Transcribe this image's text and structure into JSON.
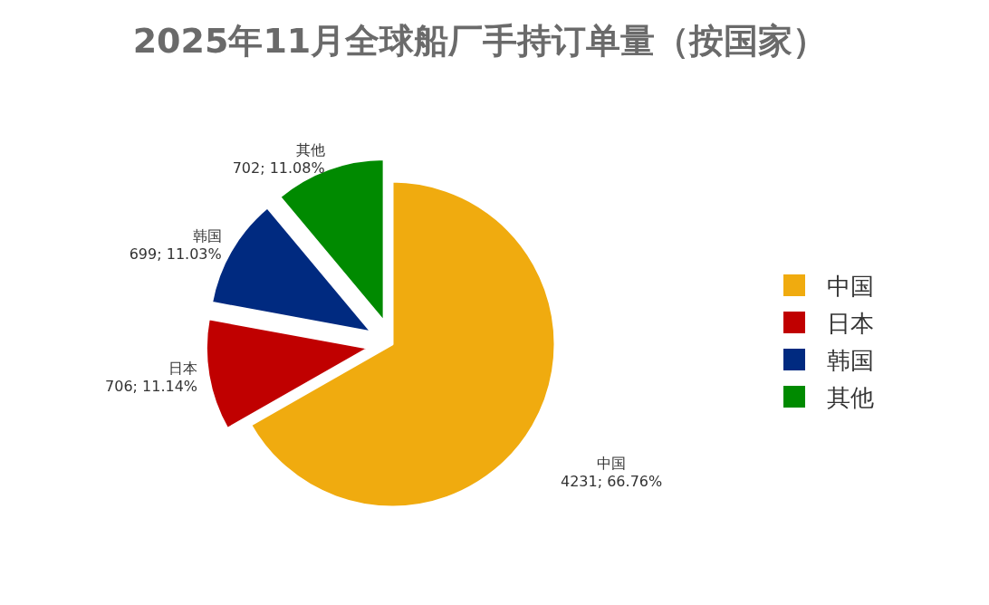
{
  "chart_data": {
    "type": "pie",
    "title": "2025年11月全球船厂手持订单量（按国家）",
    "categories": [
      "中国",
      "日本",
      "韩国",
      "其他"
    ],
    "values": [
      4231,
      706,
      699,
      702
    ],
    "colors": [
      "#f0ab0f",
      "#c00000",
      "#002a80",
      "#008a00"
    ],
    "value_labels": [
      "4231; 66.76%",
      "706; 11.14%",
      "699; 11.03%",
      "702; 11.08%"
    ],
    "legend": "right"
  }
}
